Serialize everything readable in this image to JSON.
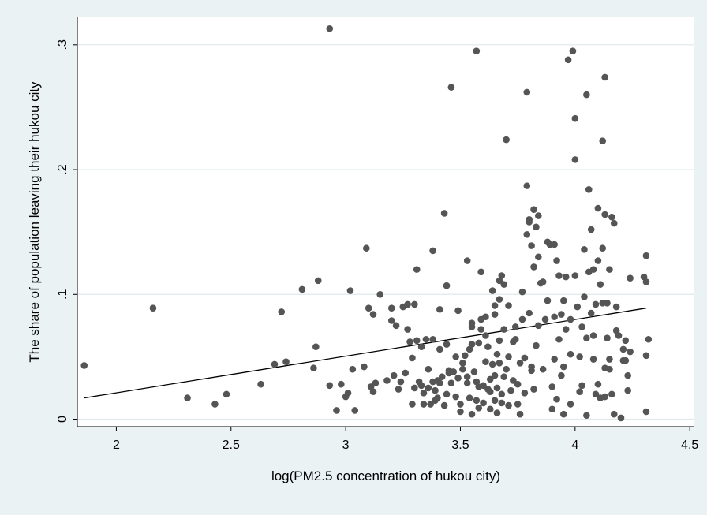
{
  "chart_data": {
    "type": "scatter",
    "title": "",
    "xlabel": "log(PM2.5 concentration of hukou city)",
    "ylabel": "The share of population leaving their hukou city",
    "xlim": [
      1.83,
      4.52
    ],
    "ylim": [
      -0.006,
      0.322
    ],
    "x_ticks": [
      2,
      2.5,
      3,
      3.5,
      4,
      4.5
    ],
    "x_tick_labels": [
      "2",
      "2.5",
      "3",
      "3.5",
      "4",
      "4.5"
    ],
    "y_ticks": [
      0,
      0.1,
      0.2,
      0.3
    ],
    "y_tick_labels": [
      "0",
      ".1",
      ".2",
      ".3"
    ],
    "grid": "horizontal",
    "legend": "none",
    "colors": {
      "points": "#555555",
      "fit_line": "#000000",
      "plot_bg": "#ffffff",
      "outer_bg": "#eaf2f3",
      "grid": "#dde9ea"
    },
    "fit_line": {
      "x": [
        1.86,
        4.31
      ],
      "y": [
        0.017,
        0.089
      ]
    },
    "points": [
      [
        1.86,
        0.043
      ],
      [
        2.16,
        0.089
      ],
      [
        2.31,
        0.017
      ],
      [
        2.43,
        0.012
      ],
      [
        2.48,
        0.02
      ],
      [
        2.63,
        0.028
      ],
      [
        2.69,
        0.044
      ],
      [
        2.72,
        0.086
      ],
      [
        2.74,
        0.046
      ],
      [
        2.81,
        0.104
      ],
      [
        2.86,
        0.041
      ],
      [
        2.87,
        0.058
      ],
      [
        2.88,
        0.111
      ],
      [
        2.93,
        0.313
      ],
      [
        2.93,
        0.027
      ],
      [
        2.96,
        0.007
      ],
      [
        2.98,
        0.028
      ],
      [
        3.0,
        0.018
      ],
      [
        3.01,
        0.021
      ],
      [
        3.02,
        0.103
      ],
      [
        3.03,
        0.04
      ],
      [
        3.04,
        0.007
      ],
      [
        3.08,
        0.042
      ],
      [
        3.09,
        0.137
      ],
      [
        3.1,
        0.089
      ],
      [
        3.11,
        0.026
      ],
      [
        3.12,
        0.084
      ],
      [
        3.12,
        0.022
      ],
      [
        3.13,
        0.029
      ],
      [
        3.15,
        0.1
      ],
      [
        3.18,
        0.031
      ],
      [
        3.2,
        0.089
      ],
      [
        3.2,
        0.079
      ],
      [
        3.21,
        0.035
      ],
      [
        3.22,
        0.075
      ],
      [
        3.23,
        0.024
      ],
      [
        3.24,
        0.03
      ],
      [
        3.25,
        0.09
      ],
      [
        3.26,
        0.037
      ],
      [
        3.27,
        0.072
      ],
      [
        3.27,
        0.092
      ],
      [
        3.28,
        0.062
      ],
      [
        3.29,
        0.049
      ],
      [
        3.29,
        0.012
      ],
      [
        3.3,
        0.092
      ],
      [
        3.3,
        0.025
      ],
      [
        3.31,
        0.063
      ],
      [
        3.31,
        0.12
      ],
      [
        3.32,
        0.03
      ],
      [
        3.33,
        0.027
      ],
      [
        3.33,
        0.058
      ],
      [
        3.34,
        0.021
      ],
      [
        3.34,
        0.012
      ],
      [
        3.35,
        0.064
      ],
      [
        3.36,
        0.025
      ],
      [
        3.36,
        0.04
      ],
      [
        3.37,
        0.012
      ],
      [
        3.38,
        0.03
      ],
      [
        3.38,
        0.135
      ],
      [
        3.38,
        0.064
      ],
      [
        3.39,
        0.023
      ],
      [
        3.39,
        0.015
      ],
      [
        3.4,
        0.017
      ],
      [
        3.4,
        0.031
      ],
      [
        3.41,
        0.056
      ],
      [
        3.41,
        0.029
      ],
      [
        3.41,
        0.088
      ],
      [
        3.42,
        0.034
      ],
      [
        3.43,
        0.011
      ],
      [
        3.43,
        0.165
      ],
      [
        3.44,
        0.02
      ],
      [
        3.44,
        0.06
      ],
      [
        3.44,
        0.107
      ],
      [
        3.45,
        0.037
      ],
      [
        3.45,
        0.039
      ],
      [
        3.46,
        0.266
      ],
      [
        3.46,
        0.029
      ],
      [
        3.47,
        0.038
      ],
      [
        3.48,
        0.05
      ],
      [
        3.48,
        0.018
      ],
      [
        3.49,
        0.033
      ],
      [
        3.49,
        0.087
      ],
      [
        3.5,
        0.012
      ],
      [
        3.5,
        0.006
      ],
      [
        3.51,
        0.04
      ],
      [
        3.51,
        0.045
      ],
      [
        3.52,
        0.051
      ],
      [
        3.53,
        0.029
      ],
      [
        3.53,
        0.034
      ],
      [
        3.53,
        0.127
      ],
      [
        3.54,
        0.056
      ],
      [
        3.54,
        0.017
      ],
      [
        3.55,
        0.06
      ],
      [
        3.55,
        0.004
      ],
      [
        3.55,
        0.074
      ],
      [
        3.55,
        0.077
      ],
      [
        3.56,
        0.038
      ],
      [
        3.57,
        0.015
      ],
      [
        3.57,
        0.03
      ],
      [
        3.57,
        0.295
      ],
      [
        3.58,
        0.009
      ],
      [
        3.58,
        0.026
      ],
      [
        3.58,
        0.061
      ],
      [
        3.59,
        0.118
      ],
      [
        3.59,
        0.072
      ],
      [
        3.59,
        0.08
      ],
      [
        3.6,
        0.027
      ],
      [
        3.6,
        0.013
      ],
      [
        3.61,
        0.082
      ],
      [
        3.61,
        0.046
      ],
      [
        3.61,
        0.067
      ],
      [
        3.62,
        0.024
      ],
      [
        3.62,
        0.058
      ],
      [
        3.63,
        0.022
      ],
      [
        3.63,
        0.008
      ],
      [
        3.63,
        0.032
      ],
      [
        3.64,
        0.044
      ],
      [
        3.64,
        0.103
      ],
      [
        3.65,
        0.084
      ],
      [
        3.65,
        0.015
      ],
      [
        3.65,
        0.035
      ],
      [
        3.65,
        0.091
      ],
      [
        3.66,
        0.005
      ],
      [
        3.66,
        0.052
      ],
      [
        3.66,
        0.025
      ],
      [
        3.67,
        0.063
      ],
      [
        3.67,
        0.096
      ],
      [
        3.67,
        0.111
      ],
      [
        3.67,
        0.045
      ],
      [
        3.68,
        0.013
      ],
      [
        3.68,
        0.115
      ],
      [
        3.68,
        0.02
      ],
      [
        3.69,
        0.072
      ],
      [
        3.69,
        0.108
      ],
      [
        3.69,
        0.034
      ],
      [
        3.7,
        0.224
      ],
      [
        3.7,
        0.04
      ],
      [
        3.71,
        0.011
      ],
      [
        3.71,
        0.05
      ],
      [
        3.71,
        0.091
      ],
      [
        3.72,
        0.023
      ],
      [
        3.73,
        0.062
      ],
      [
        3.73,
        0.031
      ],
      [
        3.74,
        0.074
      ],
      [
        3.74,
        0.064
      ],
      [
        3.75,
        0.028
      ],
      [
        3.75,
        0.012
      ],
      [
        3.76,
        0.004
      ],
      [
        3.76,
        0.045
      ],
      [
        3.77,
        0.08
      ],
      [
        3.77,
        0.102
      ],
      [
        3.78,
        0.049
      ],
      [
        3.78,
        0.021
      ],
      [
        3.79,
        0.187
      ],
      [
        3.79,
        0.148
      ],
      [
        3.79,
        0.262
      ],
      [
        3.8,
        0.158
      ],
      [
        3.8,
        0.16
      ],
      [
        3.8,
        0.085
      ],
      [
        3.81,
        0.042
      ],
      [
        3.81,
        0.039
      ],
      [
        3.81,
        0.139
      ],
      [
        3.82,
        0.024
      ],
      [
        3.82,
        0.168
      ],
      [
        3.82,
        0.122
      ],
      [
        3.83,
        0.154
      ],
      [
        3.83,
        0.059
      ],
      [
        3.84,
        0.163
      ],
      [
        3.84,
        0.075
      ],
      [
        3.84,
        0.13
      ],
      [
        3.85,
        0.109
      ],
      [
        3.86,
        0.04
      ],
      [
        3.86,
        0.11
      ],
      [
        3.87,
        0.08
      ],
      [
        3.88,
        0.095
      ],
      [
        3.88,
        0.142
      ],
      [
        3.89,
        0.14
      ],
      [
        3.9,
        0.026
      ],
      [
        3.9,
        0.008
      ],
      [
        3.91,
        0.14
      ],
      [
        3.91,
        0.082
      ],
      [
        3.91,
        0.048
      ],
      [
        3.92,
        0.016
      ],
      [
        3.92,
        0.127
      ],
      [
        3.93,
        0.115
      ],
      [
        3.93,
        0.064
      ],
      [
        3.94,
        0.084
      ],
      [
        3.94,
        0.035
      ],
      [
        3.95,
        0.004
      ],
      [
        3.95,
        0.042
      ],
      [
        3.95,
        0.095
      ],
      [
        3.96,
        0.072
      ],
      [
        3.96,
        0.114
      ],
      [
        3.97,
        0.288
      ],
      [
        3.98,
        0.052
      ],
      [
        3.98,
        0.08
      ],
      [
        3.98,
        0.012
      ],
      [
        3.99,
        0.295
      ],
      [
        4.0,
        0.241
      ],
      [
        4.0,
        0.208
      ],
      [
        4.0,
        0.115
      ],
      [
        4.01,
        0.09
      ],
      [
        4.02,
        0.022
      ],
      [
        4.02,
        0.05
      ],
      [
        4.03,
        0.074
      ],
      [
        4.03,
        0.027
      ],
      [
        4.04,
        0.098
      ],
      [
        4.04,
        0.136
      ],
      [
        4.05,
        0.065
      ],
      [
        4.05,
        0.26
      ],
      [
        4.05,
        0.003
      ],
      [
        4.06,
        0.184
      ],
      [
        4.06,
        0.118
      ],
      [
        4.07,
        0.152
      ],
      [
        4.07,
        0.085
      ],
      [
        4.08,
        0.067
      ],
      [
        4.08,
        0.12
      ],
      [
        4.08,
        0.048
      ],
      [
        4.09,
        0.092
      ],
      [
        4.09,
        0.02
      ],
      [
        4.1,
        0.169
      ],
      [
        4.1,
        0.028
      ],
      [
        4.1,
        0.127
      ],
      [
        4.11,
        0.017
      ],
      [
        4.11,
        0.108
      ],
      [
        4.12,
        0.093
      ],
      [
        4.12,
        0.223
      ],
      [
        4.12,
        0.137
      ],
      [
        4.13,
        0.274
      ],
      [
        4.13,
        0.041
      ],
      [
        4.13,
        0.164
      ],
      [
        4.13,
        0.018
      ],
      [
        4.14,
        0.065
      ],
      [
        4.14,
        0.093
      ],
      [
        4.15,
        0.04
      ],
      [
        4.15,
        0.048
      ],
      [
        4.15,
        0.12
      ],
      [
        4.16,
        0.162
      ],
      [
        4.16,
        0.02
      ],
      [
        4.17,
        0.004
      ],
      [
        4.17,
        0.157
      ],
      [
        4.18,
        0.09
      ],
      [
        4.18,
        0.071
      ],
      [
        4.19,
        0.067
      ],
      [
        4.2,
        0.001
      ],
      [
        4.21,
        0.056
      ],
      [
        4.21,
        0.047
      ],
      [
        4.22,
        0.063
      ],
      [
        4.22,
        0.047
      ],
      [
        4.23,
        0.023
      ],
      [
        4.23,
        0.035
      ],
      [
        4.24,
        0.054
      ],
      [
        4.24,
        0.113
      ],
      [
        4.3,
        0.114
      ],
      [
        4.31,
        0.006
      ],
      [
        4.31,
        0.131
      ],
      [
        4.31,
        0.051
      ],
      [
        4.31,
        0.11
      ],
      [
        4.32,
        0.064
      ]
    ]
  }
}
